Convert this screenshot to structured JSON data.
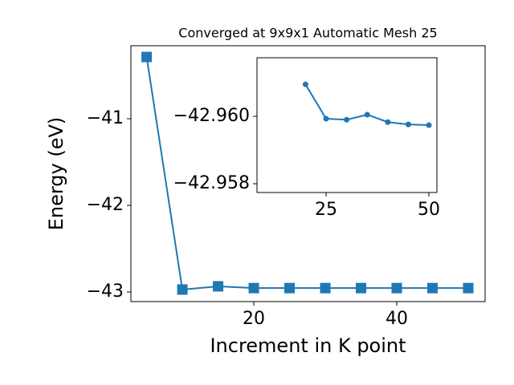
{
  "chart_data": [
    {
      "type": "line",
      "title": "Converged at 9x9x1 Automatic Mesh 25",
      "xlabel": "Increment in K point",
      "ylabel": "Energy (eV)",
      "x": [
        5,
        10,
        15,
        20,
        25,
        30,
        35,
        40,
        45,
        50
      ],
      "series": [
        {
          "color": "#1f77b4",
          "marker": "square",
          "values": [
            -40.287,
            -42.972,
            -42.935,
            -42.955,
            -42.955,
            -42.955,
            -42.955,
            -42.955,
            -42.955,
            -42.955
          ]
        }
      ],
      "xlim": [
        2.8,
        52.36
      ],
      "xticks": [
        20,
        40
      ],
      "ylim": [
        -43.111,
        -40.157
      ],
      "yticks": [
        {
          "value": -43,
          "label": "−43"
        },
        {
          "value": -42,
          "label": "−42"
        },
        {
          "value": -41,
          "label": "−41"
        }
      ]
    },
    {
      "type": "line",
      "x": [
        20,
        25,
        30,
        35,
        40,
        45,
        50
      ],
      "series": [
        {
          "color": "#1f77b4",
          "marker": "circle",
          "values": [
            -42.96095,
            -42.95993,
            -42.9599,
            -42.96005,
            -42.95983,
            -42.95976,
            -42.95974
          ]
        }
      ],
      "xlim": [
        8.2,
        51.95
      ],
      "xticks": [
        25,
        50
      ],
      "ylim": [
        -42.95774,
        -42.96174
      ],
      "yticks": [
        {
          "value": -42.958,
          "label": "−42.958"
        },
        {
          "value": -42.96,
          "label": "−42.960"
        }
      ]
    }
  ]
}
